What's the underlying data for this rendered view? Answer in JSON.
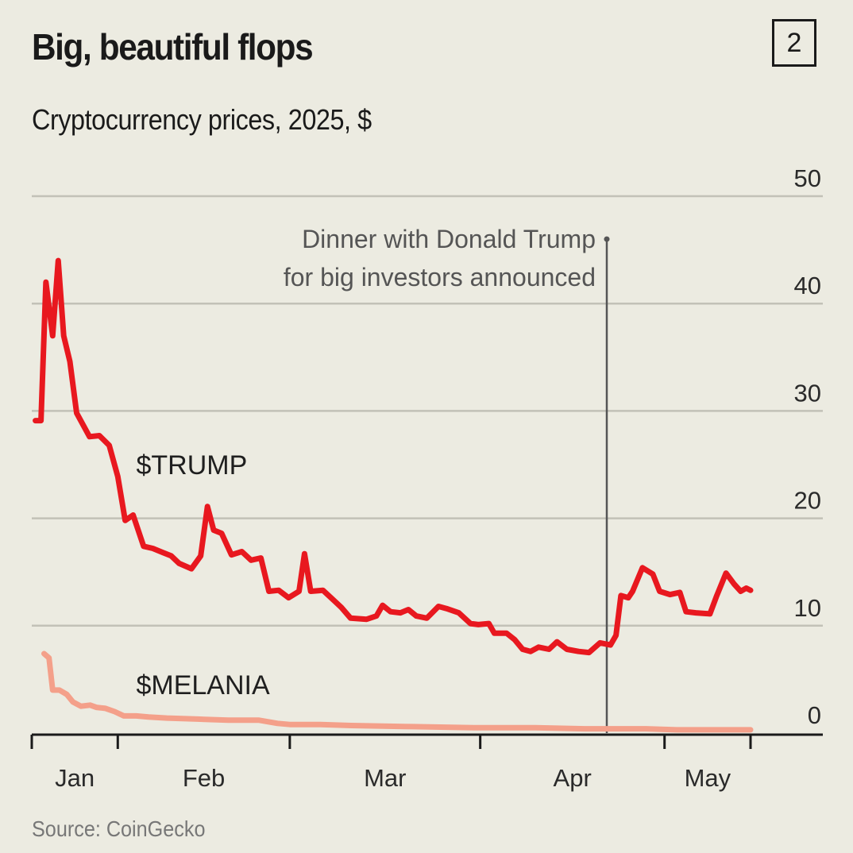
{
  "header": {
    "title": "Big, beautiful flops",
    "subtitle": "Cryptocurrency prices, 2025, $",
    "badge": "2"
  },
  "footer": {
    "source": "Source: CoinGecko"
  },
  "colors": {
    "background": "#ecebe1",
    "trump": "#e8181f",
    "melania": "#f4a08a",
    "gridline": "#c2c1b7",
    "axis": "#1a1a1a",
    "annotation_line": "#555555"
  },
  "chart_data": {
    "type": "line",
    "title": "Big, beautiful flops",
    "subtitle": "Cryptocurrency prices, 2025, $",
    "xlabel": "",
    "ylabel": "$",
    "x_unit": "day of year 2025",
    "xlim": [
      18,
      135
    ],
    "ylim": [
      0,
      50
    ],
    "yticks": [
      0,
      10,
      20,
      30,
      40,
      50
    ],
    "ytick_side": "right",
    "grid": true,
    "xticks": [
      {
        "day": 18,
        "label": ""
      },
      {
        "day": 32,
        "label": ""
      },
      {
        "day": 60,
        "label": ""
      },
      {
        "day": 91,
        "label": ""
      },
      {
        "day": 121,
        "label": ""
      },
      {
        "day": 135,
        "label": ""
      }
    ],
    "month_labels": [
      {
        "label": "Jan",
        "day": 25
      },
      {
        "label": "Feb",
        "day": 46
      },
      {
        "label": "Mar",
        "day": 75.5
      },
      {
        "label": "Apr",
        "day": 106
      },
      {
        "label": "May",
        "day": 128
      }
    ],
    "annotations": [
      {
        "day": 111.6,
        "y": 46,
        "lines": [
          "Dinner with Donald Trump",
          "for big investors announced"
        ]
      }
    ],
    "series": [
      {
        "name": "$TRUMP",
        "label": "$TRUMP",
        "label_position": {
          "day": 35,
          "y": 25
        },
        "points": [
          [
            18.6,
            29.1
          ],
          [
            19.5,
            29.1
          ],
          [
            20.3,
            42
          ],
          [
            21.4,
            37
          ],
          [
            22.3,
            44
          ],
          [
            23.2,
            37
          ],
          [
            24.2,
            34.6
          ],
          [
            25.3,
            29.8
          ],
          [
            27.4,
            27.6
          ],
          [
            29.0,
            27.7
          ],
          [
            30.6,
            26.8
          ],
          [
            32.0,
            23.9
          ],
          [
            33.2,
            19.8
          ],
          [
            34.5,
            20.3
          ],
          [
            36.2,
            17.4
          ],
          [
            37.7,
            17.2
          ],
          [
            39.4,
            16.8
          ],
          [
            40.7,
            16.5
          ],
          [
            42.0,
            15.8
          ],
          [
            44.0,
            15.3
          ],
          [
            45.5,
            16.5
          ],
          [
            46.6,
            21.1
          ],
          [
            47.6,
            18.9
          ],
          [
            48.9,
            18.6
          ],
          [
            50.5,
            16.6
          ],
          [
            52.2,
            16.9
          ],
          [
            53.7,
            16.1
          ],
          [
            55.3,
            16.3
          ],
          [
            56.6,
            13.2
          ],
          [
            58.2,
            13.3
          ],
          [
            59.8,
            12.6
          ],
          [
            61.5,
            13.2
          ],
          [
            62.4,
            16.7
          ],
          [
            63.4,
            13.2
          ],
          [
            65.4,
            13.3
          ],
          [
            67.1,
            12.4
          ],
          [
            68.4,
            11.7
          ],
          [
            69.9,
            10.7
          ],
          [
            72.5,
            10.6
          ],
          [
            74.1,
            10.9
          ],
          [
            75.1,
            11.9
          ],
          [
            76.4,
            11.3
          ],
          [
            78.0,
            11.2
          ],
          [
            79.3,
            11.5
          ],
          [
            80.6,
            10.9
          ],
          [
            82.3,
            10.7
          ],
          [
            84.2,
            11.8
          ],
          [
            85.5,
            11.6
          ],
          [
            87.5,
            11.2
          ],
          [
            89.4,
            10.2
          ],
          [
            90.7,
            10.1
          ],
          [
            92.4,
            10.2
          ],
          [
            93.3,
            9.3
          ],
          [
            95.3,
            9.3
          ],
          [
            96.6,
            8.7
          ],
          [
            97.9,
            7.8
          ],
          [
            99.2,
            7.6
          ],
          [
            100.5,
            8.0
          ],
          [
            102.2,
            7.8
          ],
          [
            103.5,
            8.5
          ],
          [
            105.1,
            7.8
          ],
          [
            107.0,
            7.6
          ],
          [
            108.7,
            7.5
          ],
          [
            110.5,
            8.4
          ],
          [
            112.2,
            8.2
          ],
          [
            113.1,
            9.1
          ],
          [
            113.9,
            12.8
          ],
          [
            115.1,
            12.6
          ],
          [
            115.8,
            13.2
          ],
          [
            117.4,
            15.4
          ],
          [
            119.1,
            14.8
          ],
          [
            120.2,
            13.2
          ],
          [
            121.9,
            12.9
          ],
          [
            123.5,
            13.1
          ],
          [
            124.5,
            11.3
          ],
          [
            126.1,
            11.2
          ],
          [
            128.4,
            11.1
          ],
          [
            129.5,
            12.8
          ],
          [
            131.0,
            14.9
          ],
          [
            132.3,
            13.9
          ],
          [
            133.4,
            13.2
          ],
          [
            134.3,
            13.5
          ],
          [
            135.0,
            13.3
          ]
        ]
      },
      {
        "name": "$MELANIA",
        "label": "$MELANIA",
        "label_position": {
          "day": 35,
          "y": 4.5
        },
        "points": [
          [
            20.0,
            7.4
          ],
          [
            20.8,
            7.0
          ],
          [
            21.4,
            4.0
          ],
          [
            22.5,
            4.0
          ],
          [
            23.7,
            3.6
          ],
          [
            24.7,
            2.9
          ],
          [
            26.0,
            2.5
          ],
          [
            27.5,
            2.6
          ],
          [
            28.5,
            2.4
          ],
          [
            30.0,
            2.3
          ],
          [
            31.5,
            2.0
          ],
          [
            33.0,
            1.6
          ],
          [
            35.0,
            1.6
          ],
          [
            37.0,
            1.5
          ],
          [
            40.0,
            1.4
          ],
          [
            45.0,
            1.3
          ],
          [
            50.0,
            1.2
          ],
          [
            55.0,
            1.2
          ],
          [
            58.0,
            0.9
          ],
          [
            60.0,
            0.8
          ],
          [
            65.0,
            0.8
          ],
          [
            70.0,
            0.7
          ],
          [
            80.0,
            0.6
          ],
          [
            90.0,
            0.5
          ],
          [
            100.0,
            0.5
          ],
          [
            108.0,
            0.4
          ],
          [
            113.0,
            0.4
          ],
          [
            118.0,
            0.4
          ],
          [
            123.0,
            0.3
          ],
          [
            128.0,
            0.3
          ],
          [
            132.0,
            0.3
          ],
          [
            135.0,
            0.3
          ]
        ]
      }
    ]
  }
}
